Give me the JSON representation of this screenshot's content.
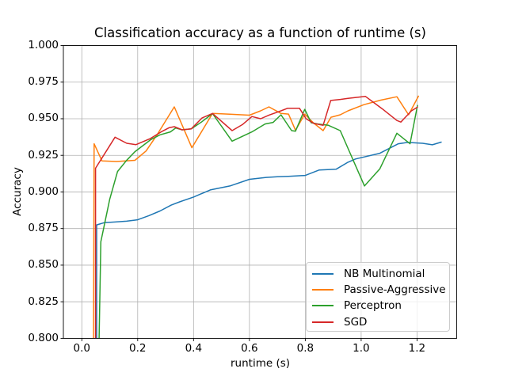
{
  "figure": {
    "background_color": "#ffffff",
    "grid_color": "#b0b0b0",
    "axis_color": "#000000",
    "legend_border_color": "#cccccc"
  },
  "chart_data": {
    "type": "line",
    "title": "Classification accuracy as a function of runtime (s)",
    "xlabel": "runtime (s)",
    "ylabel": "Accuracy",
    "xlim": [
      -0.066,
      1.342
    ],
    "ylim": [
      0.8,
      1.0
    ],
    "x_ticks": [
      0.0,
      0.2,
      0.4,
      0.6,
      0.8,
      1.0,
      1.2
    ],
    "x_tick_labels": [
      "0.0",
      "0.2",
      "0.4",
      "0.6",
      "0.8",
      "1.0",
      "1.2"
    ],
    "y_ticks": [
      0.8,
      0.825,
      0.85,
      0.875,
      0.9,
      0.925,
      0.95,
      0.975,
      1.0
    ],
    "y_tick_labels": [
      "0.800",
      "0.825",
      "0.850",
      "0.875",
      "0.900",
      "0.925",
      "0.950",
      "0.975",
      "1.000"
    ],
    "grid": true,
    "legend_position": "lower right",
    "series": [
      {
        "name": "NB Multinomial",
        "color": "#1f77b4",
        "points": [
          [
            0.053,
            0.8
          ],
          [
            0.053,
            0.8775
          ],
          [
            0.08,
            0.879
          ],
          [
            0.12,
            0.8795
          ],
          [
            0.16,
            0.88
          ],
          [
            0.2,
            0.881
          ],
          [
            0.24,
            0.8838
          ],
          [
            0.28,
            0.887
          ],
          [
            0.32,
            0.891
          ],
          [
            0.35,
            0.8932
          ],
          [
            0.4,
            0.8965
          ],
          [
            0.46,
            0.9014
          ],
          [
            0.53,
            0.9041
          ],
          [
            0.6,
            0.9086
          ],
          [
            0.66,
            0.9099
          ],
          [
            0.7,
            0.9104
          ],
          [
            0.74,
            0.9107
          ],
          [
            0.8,
            0.9113
          ],
          [
            0.85,
            0.915
          ],
          [
            0.91,
            0.9155
          ],
          [
            0.953,
            0.9203
          ],
          [
            0.98,
            0.9225
          ],
          [
            1.067,
            0.9264
          ],
          [
            1.133,
            0.9329
          ],
          [
            1.166,
            0.9338
          ],
          [
            1.22,
            0.9332
          ],
          [
            1.255,
            0.9322
          ],
          [
            1.288,
            0.9341
          ]
        ]
      },
      {
        "name": "Passive-Aggressive",
        "color": "#ff7f0e",
        "points": [
          [
            0.042,
            0.8
          ],
          [
            0.044,
            0.9329
          ],
          [
            0.072,
            0.9212
          ],
          [
            0.124,
            0.9208
          ],
          [
            0.19,
            0.9216
          ],
          [
            0.23,
            0.928
          ],
          [
            0.27,
            0.9392
          ],
          [
            0.331,
            0.9581
          ],
          [
            0.394,
            0.9302
          ],
          [
            0.468,
            0.9536
          ],
          [
            0.53,
            0.9531
          ],
          [
            0.6,
            0.9524
          ],
          [
            0.64,
            0.9554
          ],
          [
            0.67,
            0.9581
          ],
          [
            0.713,
            0.9536
          ],
          [
            0.74,
            0.9532
          ],
          [
            0.765,
            0.9421
          ],
          [
            0.798,
            0.9531
          ],
          [
            0.83,
            0.947
          ],
          [
            0.864,
            0.9419
          ],
          [
            0.892,
            0.951
          ],
          [
            0.925,
            0.9527
          ],
          [
            0.953,
            0.9554
          ],
          [
            1.01,
            0.9596
          ],
          [
            1.07,
            0.9627
          ],
          [
            1.128,
            0.965
          ],
          [
            1.17,
            0.9527
          ],
          [
            1.206,
            0.9657
          ]
        ]
      },
      {
        "name": "Perceptron",
        "color": "#2ca02c",
        "points": [
          [
            0.062,
            0.8
          ],
          [
            0.068,
            0.866
          ],
          [
            0.1,
            0.895
          ],
          [
            0.128,
            0.914
          ],
          [
            0.16,
            0.9215
          ],
          [
            0.19,
            0.9275
          ],
          [
            0.246,
            0.9356
          ],
          [
            0.28,
            0.939
          ],
          [
            0.317,
            0.941
          ],
          [
            0.336,
            0.9437
          ],
          [
            0.359,
            0.9424
          ],
          [
            0.392,
            0.9431
          ],
          [
            0.43,
            0.948
          ],
          [
            0.468,
            0.9535
          ],
          [
            0.538,
            0.9347
          ],
          [
            0.609,
            0.941
          ],
          [
            0.656,
            0.9464
          ],
          [
            0.685,
            0.9475
          ],
          [
            0.713,
            0.9527
          ],
          [
            0.751,
            0.9419
          ],
          [
            0.765,
            0.9415
          ],
          [
            0.798,
            0.9564
          ],
          [
            0.821,
            0.9473
          ],
          [
            0.845,
            0.9464
          ],
          [
            0.883,
            0.9455
          ],
          [
            0.925,
            0.9419
          ],
          [
            1.012,
            0.9041
          ],
          [
            1.067,
            0.9158
          ],
          [
            1.128,
            0.9401
          ],
          [
            1.175,
            0.9329
          ],
          [
            1.202,
            0.9594
          ]
        ]
      },
      {
        "name": "SGD",
        "color": "#d62728",
        "points": [
          [
            0.049,
            0.8
          ],
          [
            0.049,
            0.9162
          ],
          [
            0.119,
            0.9374
          ],
          [
            0.161,
            0.9332
          ],
          [
            0.194,
            0.9323
          ],
          [
            0.246,
            0.9365
          ],
          [
            0.284,
            0.941
          ],
          [
            0.312,
            0.9438
          ],
          [
            0.331,
            0.9446
          ],
          [
            0.359,
            0.9424
          ],
          [
            0.392,
            0.9431
          ],
          [
            0.43,
            0.9505
          ],
          [
            0.468,
            0.9536
          ],
          [
            0.538,
            0.9419
          ],
          [
            0.575,
            0.946
          ],
          [
            0.609,
            0.9515
          ],
          [
            0.64,
            0.95
          ],
          [
            0.67,
            0.9525
          ],
          [
            0.713,
            0.9554
          ],
          [
            0.737,
            0.9572
          ],
          [
            0.779,
            0.9572
          ],
          [
            0.803,
            0.95
          ],
          [
            0.83,
            0.9468
          ],
          [
            0.864,
            0.9455
          ],
          [
            0.891,
            0.9625
          ],
          [
            0.925,
            0.9632
          ],
          [
            0.953,
            0.9639
          ],
          [
            1.015,
            0.9653
          ],
          [
            1.076,
            0.9567
          ],
          [
            1.128,
            0.9488
          ],
          [
            1.142,
            0.9477
          ],
          [
            1.18,
            0.9554
          ],
          [
            1.203,
            0.9581
          ]
        ]
      }
    ]
  }
}
